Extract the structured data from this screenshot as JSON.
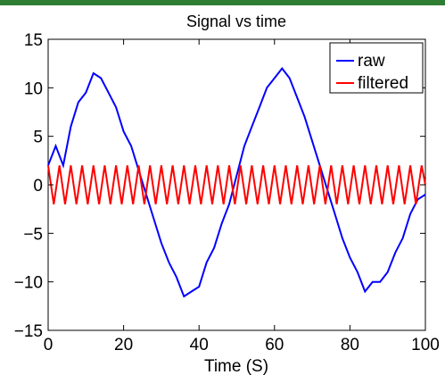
{
  "chart_data": {
    "type": "line",
    "title": "Signal vs time",
    "xlabel": "Time (S)",
    "ylabel": "",
    "xlim": [
      0,
      100
    ],
    "ylim": [
      -15,
      15
    ],
    "xticks": [
      0,
      20,
      40,
      60,
      80,
      100
    ],
    "yticks": [
      -15,
      -10,
      -5,
      0,
      5,
      10,
      15
    ],
    "xtick_labels": [
      "0",
      "20",
      "40",
      "60",
      "80",
      "100"
    ],
    "ytick_labels": [
      "−15",
      "−10",
      "−5",
      "0",
      "5",
      "10",
      "15"
    ],
    "grid": false,
    "legend_position": "top-right",
    "series": [
      {
        "name": "raw",
        "color": "#0000ff",
        "x": [
          0,
          2,
          4,
          6,
          8,
          10,
          12,
          14,
          16,
          18,
          20,
          22,
          24,
          26,
          28,
          30,
          32,
          34,
          36,
          38,
          40,
          42,
          44,
          46,
          48,
          50,
          52,
          54,
          56,
          58,
          60,
          62,
          64,
          66,
          68,
          70,
          72,
          74,
          76,
          78,
          80,
          82,
          84,
          86,
          88,
          90,
          92,
          94,
          96,
          98,
          100
        ],
        "y": [
          2.0,
          4.0,
          2.0,
          6.0,
          8.5,
          9.5,
          11.5,
          11.0,
          9.5,
          8.0,
          5.5,
          4.0,
          1.5,
          -1.0,
          -3.5,
          -6.0,
          -8.0,
          -9.5,
          -11.5,
          -11.0,
          -10.5,
          -8.0,
          -6.5,
          -4.0,
          -2.0,
          1.0,
          4.0,
          6.0,
          8.0,
          10.0,
          11.0,
          12.0,
          11.0,
          9.0,
          7.0,
          4.5,
          2.0,
          -0.5,
          -3.0,
          -5.5,
          -7.5,
          -9.0,
          -11.0,
          -10.0,
          -10.0,
          -9.0,
          -7.0,
          -5.5,
          -3.0,
          -1.5,
          -1.0
        ]
      },
      {
        "name": "filtered",
        "color": "#ff0000",
        "x": [
          0,
          1.5,
          3,
          4.5,
          6,
          7.5,
          9,
          10.5,
          12,
          13.5,
          15,
          16.5,
          18,
          19.5,
          21,
          22.5,
          24,
          25.5,
          27,
          28.5,
          30,
          31.5,
          33,
          34.5,
          36,
          37.5,
          39,
          40.5,
          42,
          43.5,
          45,
          46.5,
          48,
          49.5,
          51,
          52.5,
          54,
          55.5,
          57,
          58.5,
          60,
          61.5,
          63,
          64.5,
          66,
          67.5,
          69,
          70.5,
          72,
          73.5,
          75,
          76.5,
          78,
          79.5,
          81,
          82.5,
          84,
          85.5,
          87,
          88.5,
          90,
          91.5,
          93,
          94.5,
          96,
          97.5,
          99,
          100
        ],
        "y": [
          2.0,
          -2.0,
          2.0,
          -2.0,
          2.0,
          -2.0,
          2.0,
          -2.0,
          2.0,
          -2.0,
          2.0,
          -2.0,
          2.0,
          -2.0,
          2.0,
          -2.0,
          2.0,
          -2.0,
          2.0,
          -2.0,
          2.0,
          -2.0,
          2.0,
          -2.0,
          2.0,
          -2.0,
          2.0,
          -2.0,
          2.0,
          -2.0,
          2.0,
          -2.0,
          2.0,
          -2.0,
          2.0,
          -2.0,
          2.0,
          -2.0,
          2.0,
          -2.0,
          2.0,
          -2.0,
          2.0,
          -2.0,
          2.0,
          -2.0,
          2.0,
          -2.0,
          2.0,
          -2.0,
          2.0,
          -2.0,
          2.0,
          -2.0,
          2.0,
          -2.0,
          2.0,
          -2.0,
          2.0,
          -2.0,
          2.0,
          -2.0,
          2.0,
          -2.0,
          2.0,
          -2.0,
          2.0,
          0.0
        ]
      }
    ]
  }
}
